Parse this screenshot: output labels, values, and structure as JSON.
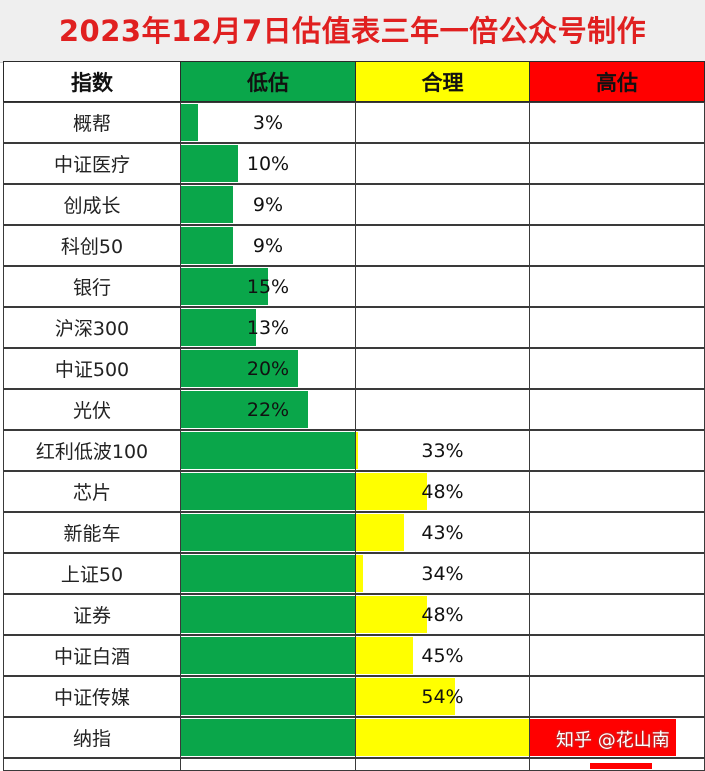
{
  "title": "2023年12月7日估值表三年一倍公众号制作",
  "headers": {
    "index": "指数",
    "low": "低估",
    "fair": "合理",
    "high": "高估"
  },
  "colors": {
    "low": "#0aa64a",
    "fair": "#ffff00",
    "high": "#ff0000"
  },
  "rows": [
    {
      "name": "概帮",
      "zone": "low",
      "value": "3%",
      "fill": 0.1
    },
    {
      "name": "中证医疗",
      "zone": "low",
      "value": "10%",
      "fill": 0.33
    },
    {
      "name": "创成长",
      "zone": "low",
      "value": "9%",
      "fill": 0.3
    },
    {
      "name": "科创50",
      "zone": "low",
      "value": "9%",
      "fill": 0.3
    },
    {
      "name": "银行",
      "zone": "low",
      "value": "15%",
      "fill": 0.5
    },
    {
      "name": "沪深300",
      "zone": "low",
      "value": "13%",
      "fill": 0.43
    },
    {
      "name": "中证500",
      "zone": "low",
      "value": "20%",
      "fill": 0.67
    },
    {
      "name": "光伏",
      "zone": "low",
      "value": "22%",
      "fill": 0.73
    },
    {
      "name": "红利低波100",
      "zone": "fair",
      "value": "33%",
      "fill": 0.01
    },
    {
      "name": "芯片",
      "zone": "fair",
      "value": "48%",
      "fill": 0.41
    },
    {
      "name": "新能车",
      "zone": "fair",
      "value": "43%",
      "fill": 0.28
    },
    {
      "name": "上证50",
      "zone": "fair",
      "value": "34%",
      "fill": 0.04
    },
    {
      "name": "证券",
      "zone": "fair",
      "value": "48%",
      "fill": 0.41
    },
    {
      "name": "中证白酒",
      "zone": "fair",
      "value": "45%",
      "fill": 0.33
    },
    {
      "name": "中证传媒",
      "zone": "fair",
      "value": "54%",
      "fill": 0.57
    },
    {
      "name": "纳指",
      "zone": "high",
      "value": "",
      "fill": 0.84
    }
  ],
  "watermark": "知乎 @花山南"
}
